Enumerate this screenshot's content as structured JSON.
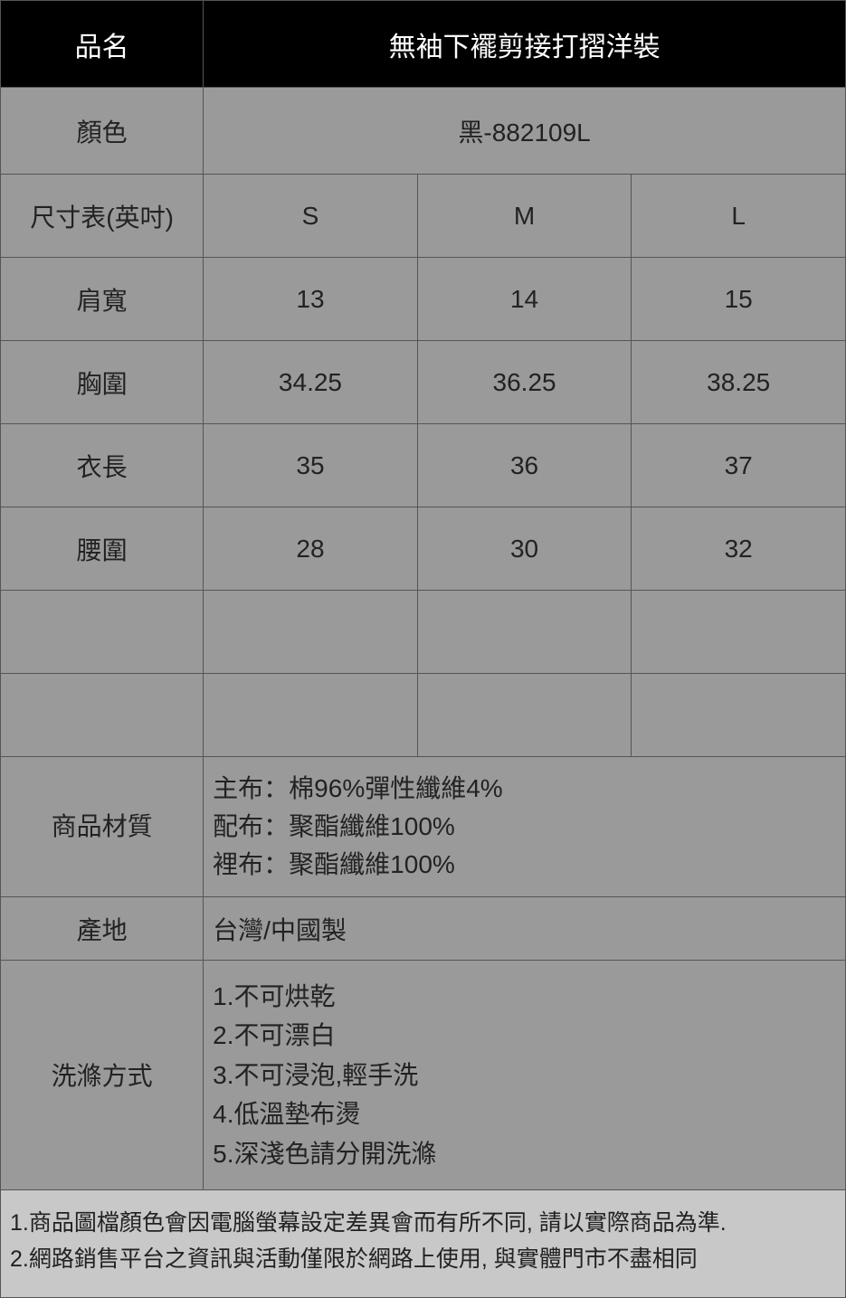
{
  "colors": {
    "header_bg": "#000000",
    "header_fg": "#ffffff",
    "body_bg": "#9a9a9a",
    "notes_bg": "#c8c8c8",
    "border": "#555555",
    "text": "#222222"
  },
  "product": {
    "name_label": "品名",
    "name_value": "無袖下襬剪接打摺洋裝",
    "color_label": "顏色",
    "color_value": "黑-882109L"
  },
  "size_table": {
    "header_label": "尺寸表(英吋)",
    "sizes": [
      "S",
      "M",
      "L"
    ],
    "rows": [
      {
        "label": "肩寬",
        "values": [
          "13",
          "14",
          "15"
        ]
      },
      {
        "label": "胸圍",
        "values": [
          "34.25",
          "36.25",
          "38.25"
        ]
      },
      {
        "label": "衣長",
        "values": [
          "35",
          "36",
          "37"
        ]
      },
      {
        "label": "腰圍",
        "values": [
          "28",
          "30",
          "32"
        ]
      }
    ]
  },
  "material": {
    "label": "商品材質",
    "lines": [
      "主布：棉96%彈性纖維4%",
      "配布：聚酯纖維100%",
      "裡布：聚酯纖維100%"
    ]
  },
  "origin": {
    "label": "產地",
    "value": "台灣/中國製"
  },
  "wash": {
    "label": "洗滌方式",
    "lines": [
      "1.不可烘乾",
      "2.不可漂白",
      "3.不可浸泡,輕手洗",
      "4.低溫墊布燙",
      "5.深淺色請分開洗滌"
    ]
  },
  "notes": [
    "1.商品圖檔顏色會因電腦螢幕設定差異會而有所不同, 請以實際商品為準.",
    "2.網路銷售平台之資訊與活動僅限於網路上使用, 與實體門市不盡相同"
  ]
}
